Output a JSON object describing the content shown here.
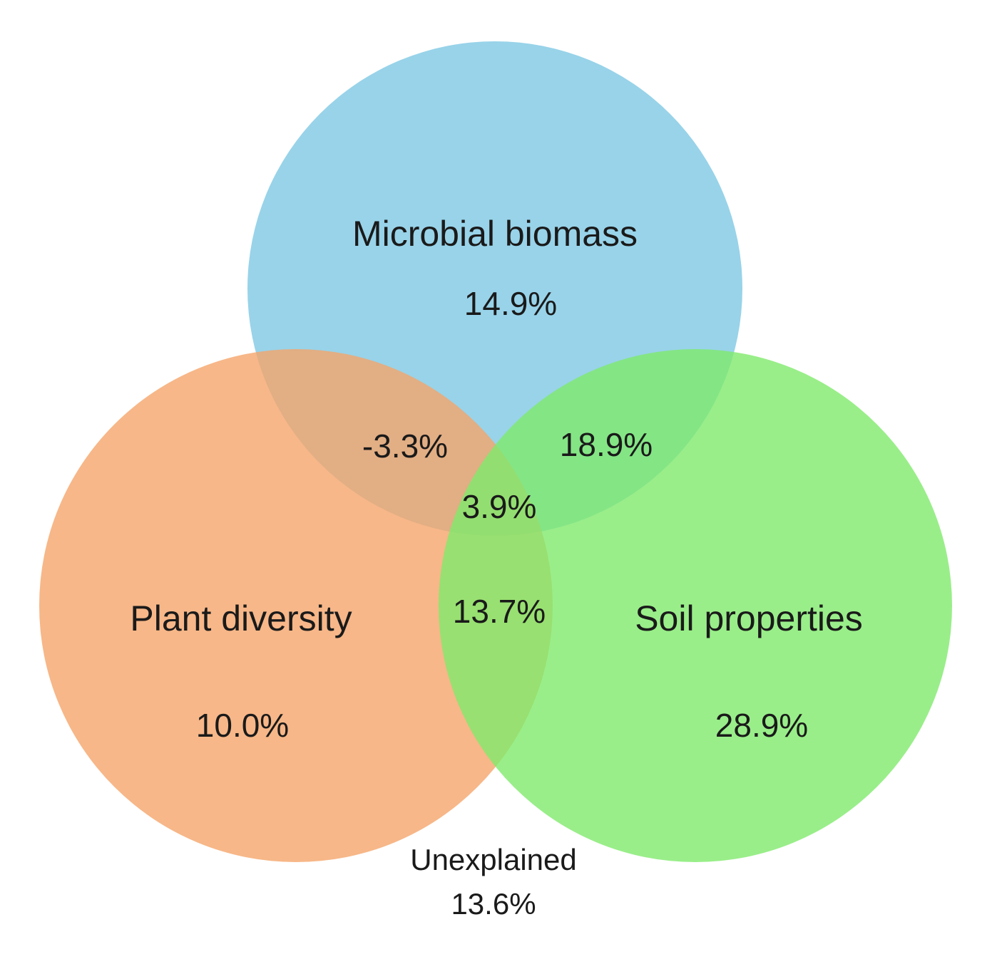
{
  "chart_data": {
    "type": "venn",
    "series": [
      {
        "name": "Microbial biomass",
        "color": "#7ec8e3"
      },
      {
        "name": "Plant diversity",
        "color": "#f5a56a"
      },
      {
        "name": "Soil properties",
        "color": "#80ea6c"
      }
    ],
    "values": [
      14.9,
      10.0,
      28.9,
      -3.3,
      18.9,
      13.7,
      3.9,
      13.6
    ],
    "value_labels": [
      "14.9%",
      "10.0%",
      "28.9%",
      "-3.3%",
      "18.9%",
      "13.7%",
      "3.9%",
      "13.6%"
    ],
    "outside_label": "Unexplained"
  }
}
